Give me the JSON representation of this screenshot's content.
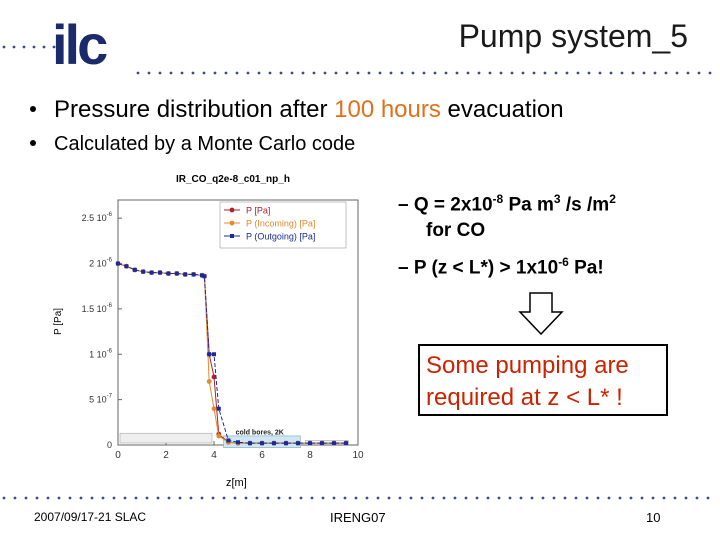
{
  "slide": {
    "title": "Pump system_5",
    "bullet1_pre": "Pressure distribution after ",
    "bullet1_hl": "100 hours",
    "bullet1_post": " evacuation",
    "bullet2": "Calculated by a Monte Carlo code",
    "right_item1_line1": "– Q = 2x10",
    "right_item1_exp1": "-8",
    "right_item1_mid": " Pa m",
    "right_item1_exp2": "3",
    "right_item1_end": " /s /m",
    "right_item1_exp3": "2",
    "right_item1_line2": "for CO",
    "right_item2_pre": "– P (z < L*) > 1x10",
    "right_item2_exp": "-6",
    "right_item2_post": " Pa!",
    "box_line1": "Some pumping are",
    "box_line2": "required at z < L* !",
    "footer_date": "2007/09/17-21  SLAC",
    "footer_event": "IRENG07",
    "footer_page": "10",
    "logo_text": "ilc"
  },
  "colors": {
    "accent": "#e0701b",
    "box_text": "#cc2200",
    "dots": "#3a4a8a",
    "series1": "#b0202a",
    "series2": "#e08a2a",
    "series3": "#1a2a9a"
  },
  "chart_data": {
    "type": "line",
    "title": "IR_CO_q2e-8_c01_np_h",
    "xlabel": "z[m]",
    "ylabel": "P [Pa]",
    "xlim": [
      0,
      10
    ],
    "ylim": [
      0,
      2.7e-06
    ],
    "xticks": [
      "0",
      "2",
      "4",
      "6",
      "8",
      "10"
    ],
    "yticks": [
      "0",
      "5 10",
      "1 10",
      "1.5 10",
      "2 10",
      "2.5 10"
    ],
    "ytick_exp": [
      "",
      "-7",
      "-6",
      "-6",
      "-6",
      "-6"
    ],
    "legend_position": "top-right",
    "annotation": "cold bores, 2K",
    "series": [
      {
        "name": "P [Pa]",
        "x": [
          0.0,
          0.35,
          0.7,
          1.05,
          1.4,
          1.75,
          2.1,
          2.45,
          2.8,
          3.15,
          3.5,
          3.6,
          3.8,
          4.0,
          4.2,
          4.6,
          5.0,
          5.5,
          6.0,
          6.5,
          7.0,
          7.5,
          8.0,
          8.5,
          9.0,
          9.5
        ],
        "y": [
          2e-06,
          1.97e-06,
          1.93e-06,
          1.91e-06,
          1.9e-06,
          1.9e-06,
          1.89e-06,
          1.89e-06,
          1.88e-06,
          1.88e-06,
          1.87e-06,
          1.86e-06,
          1e-06,
          7.5e-07,
          1.2e-07,
          3e-08,
          2e-08,
          2e-08,
          2e-08,
          2e-08,
          2e-08,
          2e-08,
          2e-08,
          2e-08,
          2e-08,
          2e-08
        ]
      },
      {
        "name": "P (Incoming) [Pa]",
        "x": [
          0.0,
          0.35,
          0.7,
          1.05,
          1.4,
          1.75,
          2.1,
          2.45,
          2.8,
          3.15,
          3.5,
          3.6,
          3.8,
          4.0,
          4.2,
          4.6,
          5.0,
          5.5,
          6.0,
          6.5,
          7.0,
          7.5,
          8.0,
          8.5,
          9.0,
          9.5
        ],
        "y": [
          2e-06,
          1.97e-06,
          1.93e-06,
          1.91e-06,
          1.9e-06,
          1.9e-06,
          1.89e-06,
          1.89e-06,
          1.88e-06,
          1.88e-06,
          1.87e-06,
          1.86e-06,
          7e-07,
          4e-07,
          1e-07,
          3e-08,
          2e-08,
          2e-08,
          2e-08,
          2e-08,
          2e-08,
          2e-08,
          2e-08,
          2e-08,
          2e-08,
          2e-08
        ]
      },
      {
        "name": "P (Outgoing) [Pa]",
        "x": [
          0.0,
          0.35,
          0.7,
          1.05,
          1.4,
          1.75,
          2.1,
          2.45,
          2.8,
          3.15,
          3.5,
          3.6,
          3.8,
          4.0,
          4.2,
          4.6,
          5.0,
          5.5,
          6.0,
          6.5,
          7.0,
          7.5,
          8.0,
          8.5,
          9.0,
          9.5
        ],
        "y": [
          2e-06,
          1.97e-06,
          1.93e-06,
          1.91e-06,
          1.9e-06,
          1.9e-06,
          1.89e-06,
          1.89e-06,
          1.88e-06,
          1.88e-06,
          1.87e-06,
          1.86e-06,
          1e-06,
          1e-06,
          4e-07,
          5e-08,
          3e-08,
          2e-08,
          2e-08,
          2e-08,
          2e-08,
          2e-08,
          2e-08,
          2e-08,
          2e-08,
          2e-08
        ]
      }
    ]
  }
}
